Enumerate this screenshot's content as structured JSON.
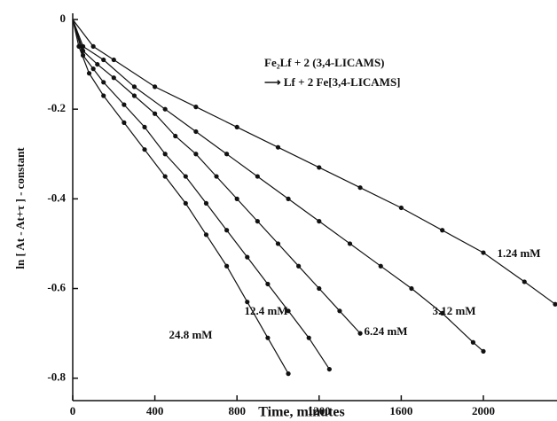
{
  "chart_data": {
    "type": "line",
    "xlabel": "Time, minutes",
    "ylabel": "ln [ At - At+τ ] - constant",
    "annotations": [
      "Fe₂Lf  +  2  (3,4-LICAMS)",
      "⟶   Lf  +  2  Fe[3,4-LICAMS]"
    ],
    "xlim": [
      0,
      2350
    ],
    "xticks": [
      0,
      400,
      800,
      1200,
      1600,
      2000
    ],
    "ylim": [
      -0.85,
      0
    ],
    "yticks": [
      0,
      -0.2,
      -0.4,
      -0.6,
      -0.8
    ],
    "series": [
      {
        "name": "1.24 mM",
        "color": "#111111",
        "x": [
          0,
          100,
          200,
          400,
          600,
          800,
          1000,
          1200,
          1400,
          1600,
          1800,
          2000,
          2200,
          2350
        ],
        "values": [
          0,
          -0.06,
          -0.09,
          -0.15,
          -0.195,
          -0.24,
          -0.285,
          -0.33,
          -0.375,
          -0.42,
          -0.47,
          -0.52,
          -0.585,
          -0.635
        ]
      },
      {
        "name": "3.12 mM",
        "color": "#111111",
        "x": [
          0,
          50,
          150,
          300,
          450,
          600,
          750,
          900,
          1050,
          1200,
          1350,
          1500,
          1650,
          1800,
          1950,
          2000
        ],
        "values": [
          0,
          -0.06,
          -0.09,
          -0.15,
          -0.2,
          -0.25,
          -0.3,
          -0.35,
          -0.4,
          -0.45,
          -0.5,
          -0.55,
          -0.6,
          -0.655,
          -0.72,
          -0.74
        ]
      },
      {
        "name": "6.24 mM",
        "color": "#111111",
        "x": [
          0,
          50,
          120,
          200,
          300,
          400,
          500,
          600,
          700,
          800,
          900,
          1000,
          1100,
          1200,
          1300,
          1400
        ],
        "values": [
          0,
          -0.07,
          -0.1,
          -0.13,
          -0.17,
          -0.21,
          -0.26,
          -0.3,
          -0.35,
          -0.4,
          -0.45,
          -0.5,
          -0.55,
          -0.6,
          -0.65,
          -0.7
        ]
      },
      {
        "name": "12.4 mM",
        "color": "#111111",
        "x": [
          0,
          50,
          100,
          150,
          250,
          350,
          450,
          550,
          650,
          750,
          850,
          950,
          1050,
          1150,
          1250
        ],
        "values": [
          0,
          -0.08,
          -0.11,
          -0.14,
          -0.19,
          -0.24,
          -0.3,
          -0.35,
          -0.41,
          -0.47,
          -0.53,
          -0.59,
          -0.65,
          -0.71,
          -0.78
        ]
      },
      {
        "name": "24.8 mM",
        "color": "#111111",
        "x": [
          0,
          30,
          80,
          150,
          250,
          350,
          450,
          550,
          650,
          750,
          850,
          950,
          1050
        ],
        "values": [
          0,
          -0.06,
          -0.12,
          -0.17,
          -0.23,
          -0.29,
          -0.35,
          -0.41,
          -0.48,
          -0.55,
          -0.63,
          -0.71,
          -0.79
        ]
      }
    ]
  }
}
